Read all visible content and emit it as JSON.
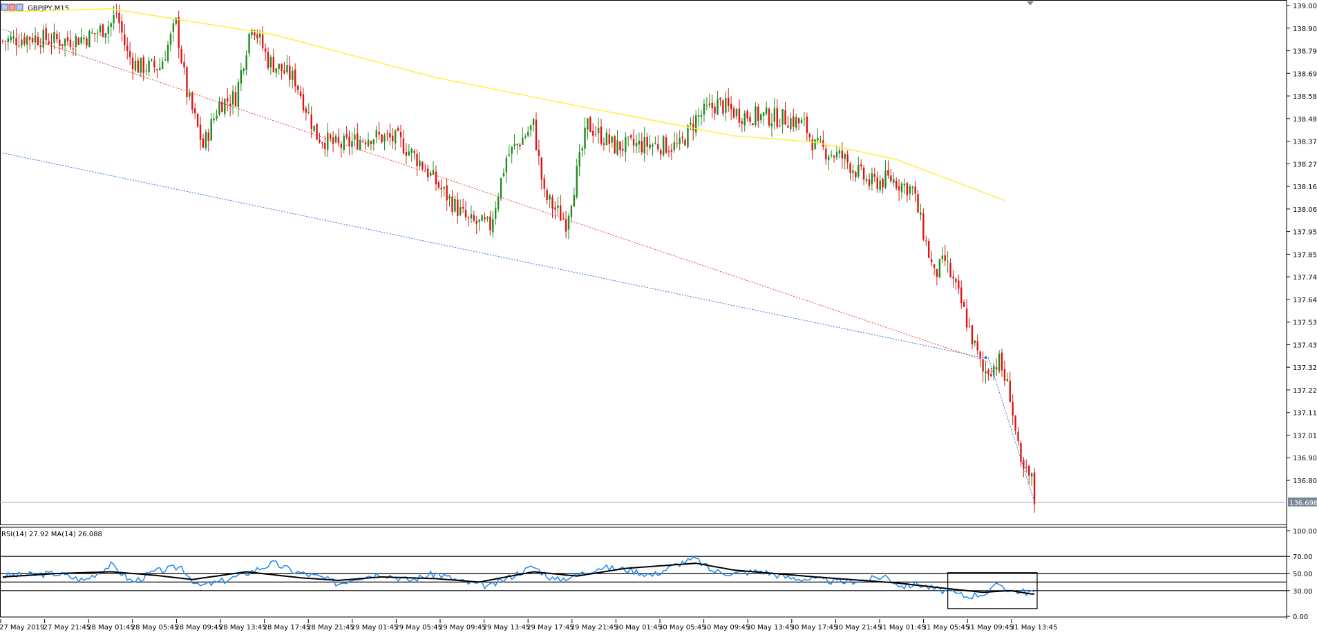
{
  "window": {
    "symbol_label": "GBPJPY,M15"
  },
  "chart_data": {
    "type": "candlestick",
    "symbol": "GBPJPY",
    "timeframe": "M15",
    "y_ticks": [
      "139.005",
      "138.900",
      "138.795",
      "138.690",
      "138.585",
      "138.480",
      "138.375",
      "138.270",
      "138.165",
      "138.060",
      "137.955",
      "137.850",
      "137.745",
      "137.640",
      "137.535",
      "137.430",
      "137.325",
      "137.220",
      "137.115",
      "137.010",
      "136.905",
      "136.800"
    ],
    "ylim": [
      136.62,
      139.02
    ],
    "current_price": "136.698",
    "x_ticks": [
      "27 May 2019",
      "27 May 21:45",
      "28 May 01:45",
      "28 May 05:45",
      "28 May 09:45",
      "28 May 13:45",
      "28 May 17:45",
      "28 May 21:45",
      "29 May 01:45",
      "29 May 05:45",
      "29 May 09:45",
      "29 May 13:45",
      "29 May 17:45",
      "29 May 21:45",
      "30 May 01:45",
      "30 May 05:45",
      "30 May 09:45",
      "30 May 13:45",
      "30 May 17:45",
      "30 May 21:45",
      "31 May 01:45",
      "31 May 05:45",
      "31 May 09:45",
      "31 May 13:45"
    ],
    "bar_count": 382,
    "price_anchors": [
      [
        0,
        138.84
      ],
      [
        10,
        138.86
      ],
      [
        22,
        138.84
      ],
      [
        32,
        138.86
      ],
      [
        40,
        138.92
      ],
      [
        42,
        138.97
      ],
      [
        46,
        138.78
      ],
      [
        50,
        138.72
      ],
      [
        58,
        138.72
      ],
      [
        64,
        138.92
      ],
      [
        68,
        138.6
      ],
      [
        74,
        138.35
      ],
      [
        80,
        138.55
      ],
      [
        86,
        138.58
      ],
      [
        92,
        138.93
      ],
      [
        98,
        138.75
      ],
      [
        108,
        138.66
      ],
      [
        116,
        138.4
      ],
      [
        124,
        138.35
      ],
      [
        136,
        138.4
      ],
      [
        146,
        138.38
      ],
      [
        154,
        138.28
      ],
      [
        162,
        138.15
      ],
      [
        172,
        138.0
      ],
      [
        180,
        137.98
      ],
      [
        186,
        138.3
      ],
      [
        196,
        138.45
      ],
      [
        200,
        138.12
      ],
      [
        208,
        138.0
      ],
      [
        216,
        138.45
      ],
      [
        226,
        138.35
      ],
      [
        240,
        138.36
      ],
      [
        250,
        138.35
      ],
      [
        256,
        138.48
      ],
      [
        264,
        138.55
      ],
      [
        272,
        138.5
      ],
      [
        290,
        138.48
      ],
      [
        296,
        138.45
      ],
      [
        300,
        138.35
      ],
      [
        310,
        138.3
      ],
      [
        320,
        138.18
      ],
      [
        328,
        138.2
      ],
      [
        336,
        138.15
      ],
      [
        340,
        137.95
      ],
      [
        344,
        137.75
      ],
      [
        348,
        137.82
      ],
      [
        354,
        137.62
      ],
      [
        362,
        137.3
      ],
      [
        368,
        137.35
      ],
      [
        372,
        137.2
      ],
      [
        376,
        136.85
      ],
      [
        380,
        136.8
      ],
      [
        381,
        136.7
      ]
    ],
    "ma_yellow": [
      [
        0,
        138.975
      ],
      [
        40,
        138.99
      ],
      [
        100,
        138.87
      ],
      [
        160,
        138.67
      ],
      [
        220,
        138.52
      ],
      [
        270,
        138.4
      ],
      [
        300,
        138.37
      ],
      [
        330,
        138.29
      ],
      [
        370,
        138.1
      ]
    ],
    "trendline_red_dotted": [
      [
        0,
        138.895
      ],
      [
        364,
        137.35
      ]
    ],
    "trendline_blue_dotted": [
      [
        0,
        138.32
      ],
      [
        362,
        137.37
      ]
    ],
    "indicator": {
      "label": "RSI(14) 27.92 MA(14) 26.088",
      "y_ticks": [
        "100.00",
        "70.00",
        "50.00",
        "30.00",
        "0.00"
      ],
      "levels": [
        70,
        50,
        40,
        30
      ],
      "rsi_last": 27.92,
      "ma_last": 26.088,
      "rsi_anchors": [
        [
          0,
          47
        ],
        [
          20,
          50
        ],
        [
          30,
          42
        ],
        [
          40,
          60
        ],
        [
          48,
          40
        ],
        [
          56,
          52
        ],
        [
          66,
          58
        ],
        [
          72,
          35
        ],
        [
          80,
          40
        ],
        [
          88,
          48
        ],
        [
          100,
          62
        ],
        [
          108,
          52
        ],
        [
          118,
          45
        ],
        [
          124,
          38
        ],
        [
          130,
          45
        ],
        [
          140,
          50
        ],
        [
          150,
          42
        ],
        [
          160,
          50
        ],
        [
          170,
          40
        ],
        [
          180,
          35
        ],
        [
          190,
          50
        ],
        [
          196,
          58
        ],
        [
          204,
          42
        ],
        [
          212,
          48
        ],
        [
          220,
          57
        ],
        [
          230,
          55
        ],
        [
          240,
          48
        ],
        [
          250,
          62
        ],
        [
          256,
          67
        ],
        [
          262,
          53
        ],
        [
          270,
          50
        ],
        [
          280,
          53
        ],
        [
          290,
          45
        ],
        [
          300,
          43
        ],
        [
          310,
          40
        ],
        [
          320,
          43
        ],
        [
          326,
          47
        ],
        [
          332,
          35
        ],
        [
          338,
          38
        ],
        [
          344,
          32
        ],
        [
          350,
          28
        ],
        [
          356,
          23
        ],
        [
          364,
          28
        ],
        [
          368,
          38
        ],
        [
          372,
          30
        ],
        [
          380,
          28
        ]
      ],
      "ma_anchors": [
        [
          0,
          46
        ],
        [
          20,
          50
        ],
        [
          40,
          52
        ],
        [
          56,
          48
        ],
        [
          70,
          43
        ],
        [
          90,
          52
        ],
        [
          110,
          45
        ],
        [
          124,
          42
        ],
        [
          140,
          46
        ],
        [
          160,
          44
        ],
        [
          176,
          40
        ],
        [
          196,
          52
        ],
        [
          212,
          47
        ],
        [
          230,
          56
        ],
        [
          256,
          62
        ],
        [
          270,
          54
        ],
        [
          300,
          46
        ],
        [
          330,
          39
        ],
        [
          350,
          32
        ],
        [
          362,
          28
        ],
        [
          372,
          30
        ],
        [
          380,
          26
        ]
      ]
    }
  }
}
